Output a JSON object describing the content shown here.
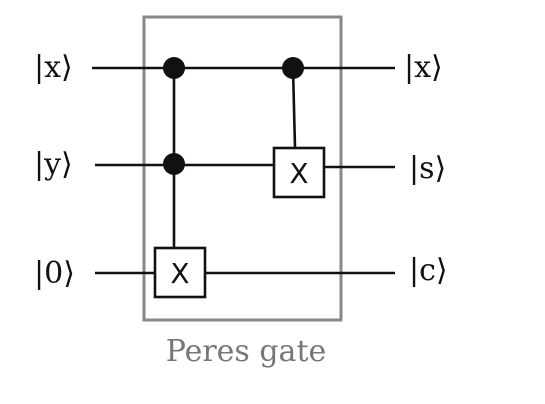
{
  "circuit": {
    "inputs": [
      "|x⟩",
      "|y⟩",
      "|0⟩"
    ],
    "outputs": [
      "|x⟩",
      "|s⟩",
      "|c⟩"
    ],
    "gate_label_1": "X",
    "gate_label_2": "X",
    "caption": "Peres gate"
  },
  "colors": {
    "wire": "#111111",
    "box": "#888888",
    "caption": "#777777"
  }
}
